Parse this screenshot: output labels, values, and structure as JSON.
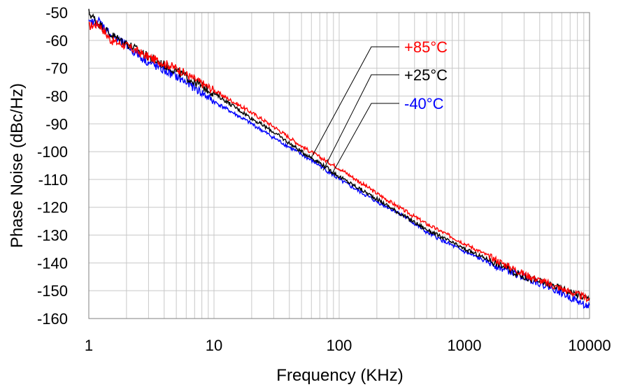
{
  "chart_data": {
    "type": "line",
    "title": "",
    "xlabel": "Frequency (KHz)",
    "ylabel": "Phase Noise (dBc/Hz)",
    "xscale": "log",
    "xlim": [
      1,
      10000
    ],
    "ylim": [
      -160,
      -50
    ],
    "x_ticks": [
      1,
      10,
      100,
      1000,
      10000
    ],
    "x_tick_labels": [
      "1",
      "10",
      "100",
      "1000",
      "10000"
    ],
    "y_ticks": [
      -50,
      -60,
      -70,
      -80,
      -90,
      -100,
      -110,
      -120,
      -130,
      -140,
      -150,
      -160
    ],
    "y_tick_labels": [
      "-50",
      "-60",
      "-70",
      "-80",
      "-90",
      "-100",
      "-110",
      "-120",
      "-130",
      "-140",
      "-150",
      "-160"
    ],
    "grid": true,
    "legend_placement": "callouts top-center",
    "series": [
      {
        "name": "+85°C",
        "color": "#ff0000",
        "x": [
          1,
          1.2,
          1.5,
          2,
          3,
          5,
          7,
          10,
          20,
          30,
          50,
          70,
          100,
          200,
          300,
          500,
          1000,
          2000,
          3000,
          5000,
          10000
        ],
        "y": [
          -55,
          -54,
          -60,
          -62,
          -66,
          -70,
          -74,
          -78,
          -86,
          -91,
          -98,
          -102,
          -106,
          -115,
          -120,
          -126,
          -133,
          -140,
          -144,
          -148,
          -153
        ]
      },
      {
        "name": "+25°C",
        "color": "#000000",
        "x": [
          1,
          1.2,
          1.5,
          2,
          3,
          5,
          7,
          10,
          20,
          30,
          50,
          70,
          100,
          200,
          300,
          500,
          1000,
          2000,
          3000,
          5000,
          10000
        ],
        "y": [
          -50,
          -54,
          -58,
          -61,
          -66,
          -71,
          -75,
          -79,
          -88,
          -93,
          -100,
          -104,
          -109,
          -117,
          -122,
          -128,
          -135,
          -141,
          -145,
          -148,
          -153
        ]
      },
      {
        "name": "-40°C",
        "color": "#0000ff",
        "x": [
          1,
          1.2,
          1.5,
          2,
          3,
          5,
          7,
          10,
          20,
          30,
          50,
          70,
          100,
          200,
          300,
          500,
          1000,
          2000,
          3000,
          5000,
          10000
        ],
        "y": [
          -54,
          -53,
          -58,
          -62,
          -68,
          -73,
          -77,
          -82,
          -90,
          -95,
          -101,
          -105,
          -110,
          -118,
          -122,
          -129,
          -136,
          -142,
          -145,
          -149,
          -156
        ]
      }
    ]
  }
}
